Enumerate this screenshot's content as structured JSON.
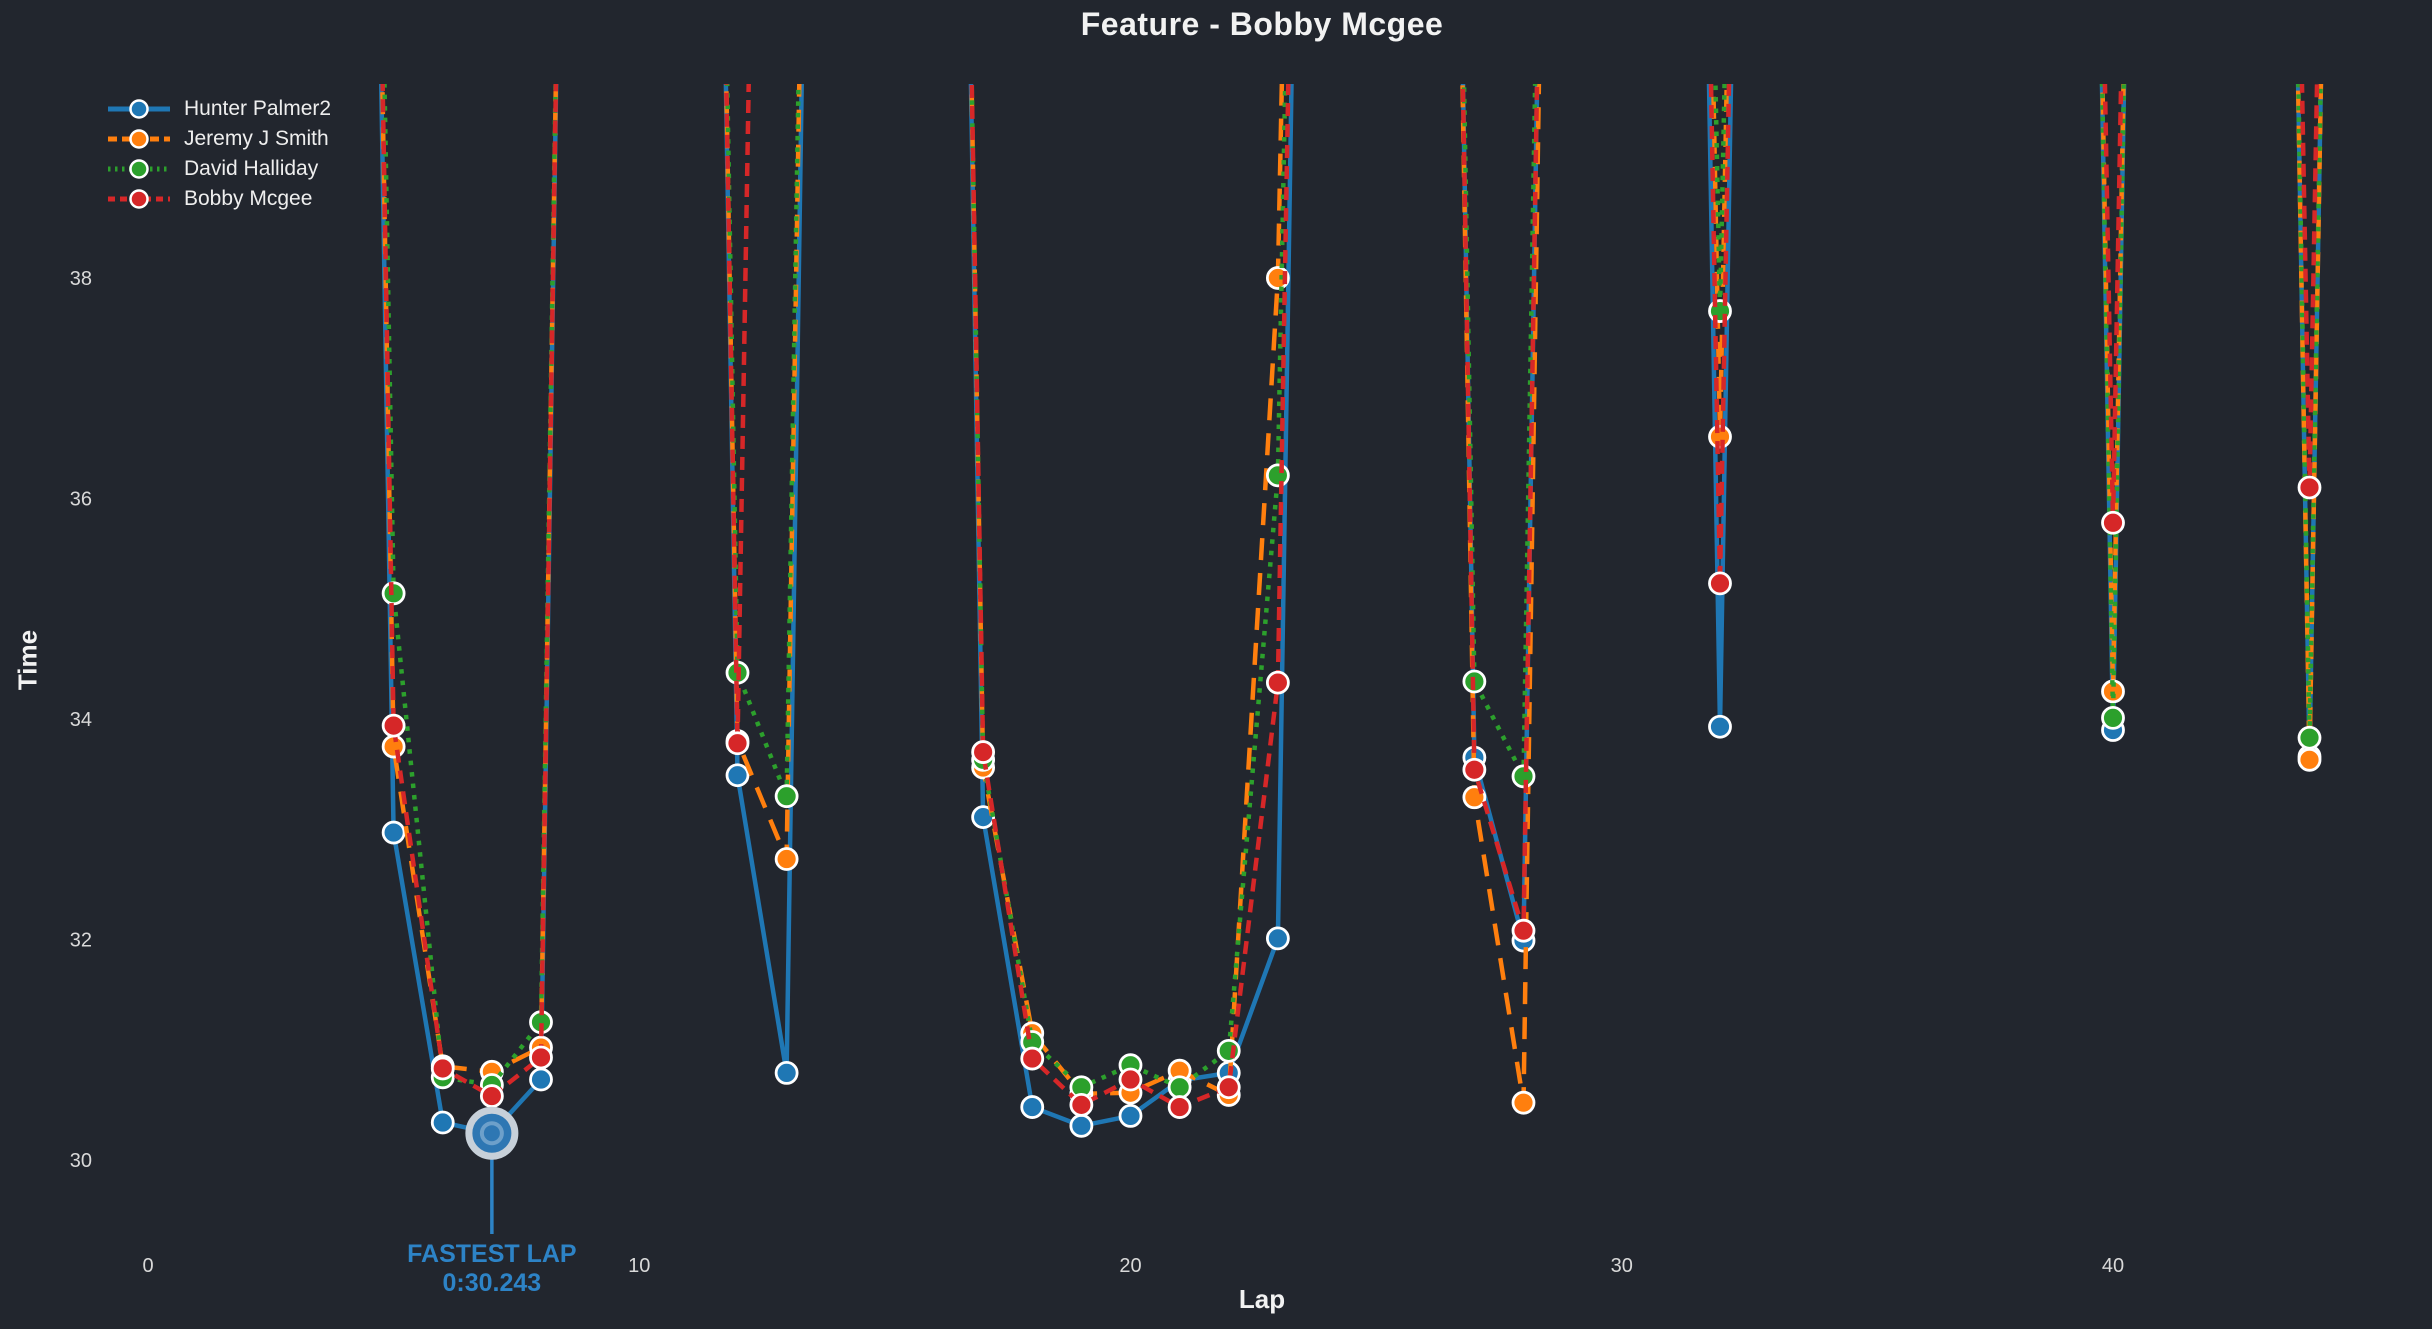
{
  "title": "Feature - Bobby Mcgee",
  "axes": {
    "x_label": "Lap",
    "y_label": "Time",
    "x_ticks": [
      0,
      10,
      20,
      30,
      40
    ],
    "y_ticks": [
      30,
      32,
      34,
      36,
      38
    ]
  },
  "annotation": {
    "line1": "FASTEST LAP",
    "line2": "0:30.243"
  },
  "colors": {
    "background": "#22262e",
    "text": "#f2f2f2",
    "tick_text": "#d9d9d9",
    "annotation_blue": "#2d83c6",
    "fastest_ring": "#c7d0d9",
    "marker_edge": "#ffffff"
  },
  "chart_data": {
    "type": "line",
    "title": "Feature - Bobby Mcgee",
    "xlabel": "Lap",
    "ylabel": "Time",
    "xlim": [
      -0.6,
      46.2
    ],
    "ylim": [
      29.25,
      39.75
    ],
    "grid": false,
    "legend_position": "upper left",
    "offscale_value": 60,
    "x": [
      4,
      5,
      6,
      7,
      8,
      9,
      10,
      11,
      12,
      13,
      14,
      15,
      16,
      17,
      18,
      19,
      20,
      21,
      22,
      23,
      24,
      25,
      26,
      27,
      28,
      29,
      30,
      31,
      32,
      33,
      34,
      35,
      36,
      37,
      38,
      39,
      40,
      41,
      42,
      43,
      44,
      45
    ],
    "series": [
      {
        "name": "Hunter Palmer2",
        "color": "#1f77b4",
        "dash": "solid",
        "values": [
          null,
          32.97,
          30.34,
          30.243,
          30.73,
          null,
          null,
          null,
          33.49,
          30.79,
          null,
          null,
          null,
          33.11,
          30.48,
          30.31,
          30.4,
          30.72,
          30.79,
          32.01,
          null,
          null,
          null,
          33.65,
          31.99,
          null,
          null,
          null,
          33.93,
          null,
          null,
          null,
          null,
          null,
          null,
          null,
          33.9,
          null,
          null,
          null,
          33.66,
          null
        ]
      },
      {
        "name": "Jeremy J Smith",
        "color": "#ff7f0e",
        "dash": "dashed",
        "values": [
          null,
          33.75,
          30.85,
          30.8,
          31.02,
          null,
          null,
          null,
          33.8,
          32.73,
          null,
          null,
          null,
          33.56,
          31.15,
          30.6,
          30.61,
          30.81,
          30.59,
          38.0,
          null,
          null,
          null,
          33.29,
          30.52,
          null,
          null,
          null,
          36.56,
          null,
          null,
          null,
          null,
          null,
          null,
          null,
          34.25,
          null,
          null,
          null,
          33.63,
          null
        ]
      },
      {
        "name": "David Halliday",
        "color": "#2ca02c",
        "dash": "dotted",
        "values": [
          null,
          35.14,
          30.75,
          30.68,
          31.25,
          null,
          null,
          null,
          34.42,
          33.3,
          null,
          null,
          null,
          33.63,
          31.07,
          30.66,
          30.86,
          30.66,
          30.99,
          36.21,
          null,
          null,
          null,
          34.34,
          33.48,
          null,
          null,
          null,
          37.7,
          null,
          null,
          null,
          null,
          null,
          null,
          null,
          34.01,
          null,
          null,
          null,
          33.83,
          null
        ]
      },
      {
        "name": "Bobby Mcgee",
        "color": "#d62728",
        "dash": "dashdot",
        "values": [
          null,
          33.94,
          30.83,
          30.58,
          30.93,
          null,
          null,
          null,
          33.78,
          null,
          null,
          null,
          null,
          33.7,
          30.92,
          30.5,
          30.73,
          30.48,
          30.66,
          34.33,
          null,
          null,
          null,
          33.54,
          32.08,
          null,
          null,
          null,
          35.23,
          null,
          null,
          null,
          null,
          null,
          null,
          null,
          35.78,
          null,
          null,
          null,
          36.1,
          null
        ]
      }
    ],
    "fastest_lap": {
      "series": "Hunter Palmer2",
      "lap": 7,
      "value": 30.243,
      "label_line1": "FASTEST LAP",
      "label_line2": "0:30.243"
    }
  }
}
